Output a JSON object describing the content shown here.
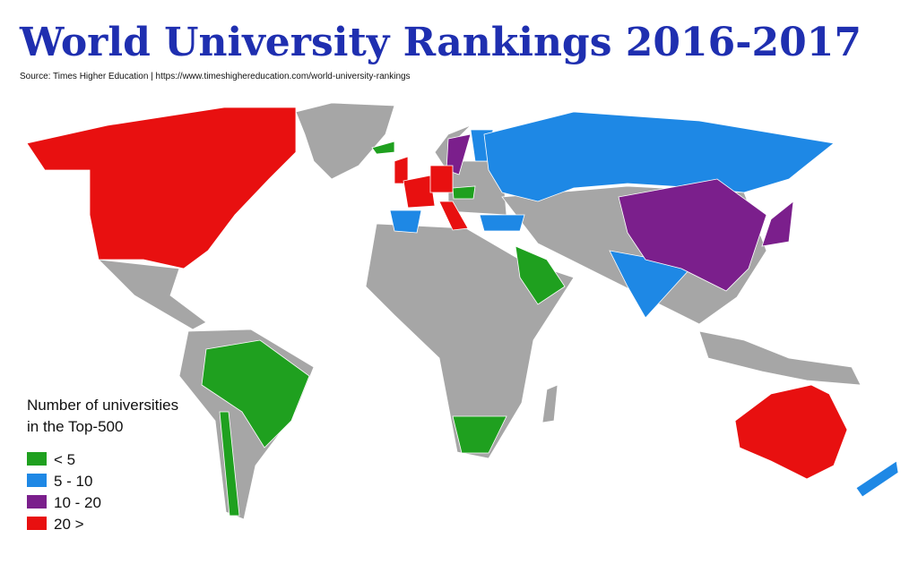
{
  "header": {
    "title": "World University Rankings 2016-2017",
    "source": "Source: Times Higher Education |  https://www.timeshighereducation.com/world-university-rankings"
  },
  "legend": {
    "title": [
      "Number of universities",
      "in the Top-500"
    ],
    "items": [
      {
        "label": "< 5",
        "color": "#1fa01f"
      },
      {
        "label": "5 - 10",
        "color": "#1e88e5"
      },
      {
        "label": "10 - 20",
        "color": "#7b1f8c"
      },
      {
        "label": "20 >",
        "color": "#e81010"
      }
    ]
  }
}
